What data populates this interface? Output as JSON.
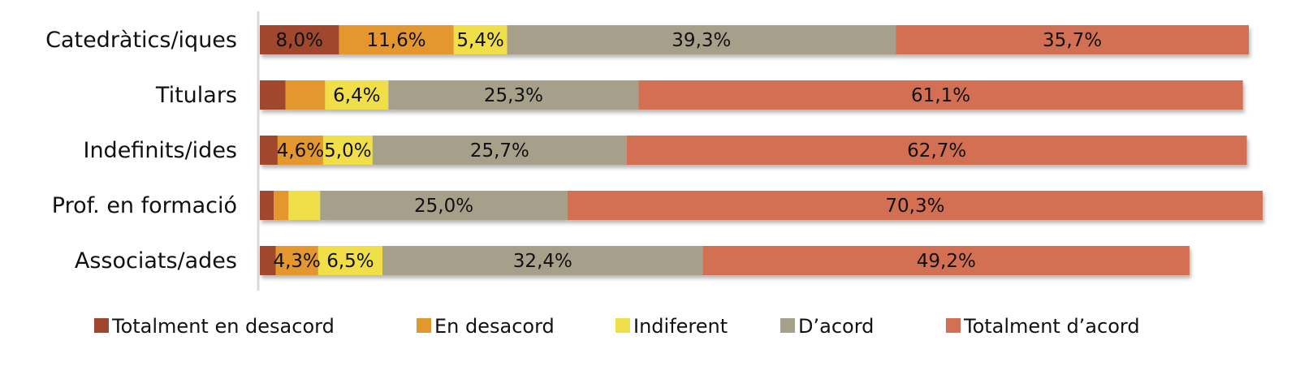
{
  "chart_data": {
    "type": "bar",
    "orientation": "horizontal",
    "stacked": true,
    "title": "",
    "xlabel": "",
    "ylabel": "",
    "categories": [
      "Catedràtics/iques",
      "Titulars",
      "Indefinits/ides",
      "Prof. en formació",
      "Associats/ades"
    ],
    "series": [
      {
        "name": "Totalment en desacord",
        "color": "#a0462d",
        "values": [
          8.0,
          2.6,
          1.8,
          1.4,
          1.6
        ],
        "labels": [
          "8,0%",
          "",
          "",
          "",
          ""
        ]
      },
      {
        "name": "En desacord",
        "color": "#e3972f",
        "values": [
          11.6,
          4.0,
          4.6,
          1.5,
          4.3
        ],
        "labels": [
          "11,6%",
          "",
          "4,6%",
          "",
          "4,3%"
        ]
      },
      {
        "name": "Indiferent",
        "color": "#f0df4a",
        "values": [
          5.4,
          6.4,
          5.0,
          3.2,
          6.5
        ],
        "labels": [
          "5,4%",
          "6,4%",
          "5,0%",
          "",
          "6,5%"
        ]
      },
      {
        "name": "D’acord",
        "color": "#a6a08a",
        "values": [
          39.3,
          25.3,
          25.7,
          25.0,
          32.4
        ],
        "labels": [
          "39,3%",
          "25,3%",
          "25,7%",
          "25,0%",
          "32,4%"
        ]
      },
      {
        "name": "Totalment d’acord",
        "color": "#d36f52",
        "values": [
          35.7,
          61.1,
          62.7,
          70.3,
          49.2
        ],
        "labels": [
          "35,7%",
          "61,1%",
          "62,7%",
          "70,3%",
          "49,2%"
        ]
      }
    ],
    "xlim": [
      0,
      100
    ],
    "grid": false,
    "legend_position": "bottom"
  }
}
